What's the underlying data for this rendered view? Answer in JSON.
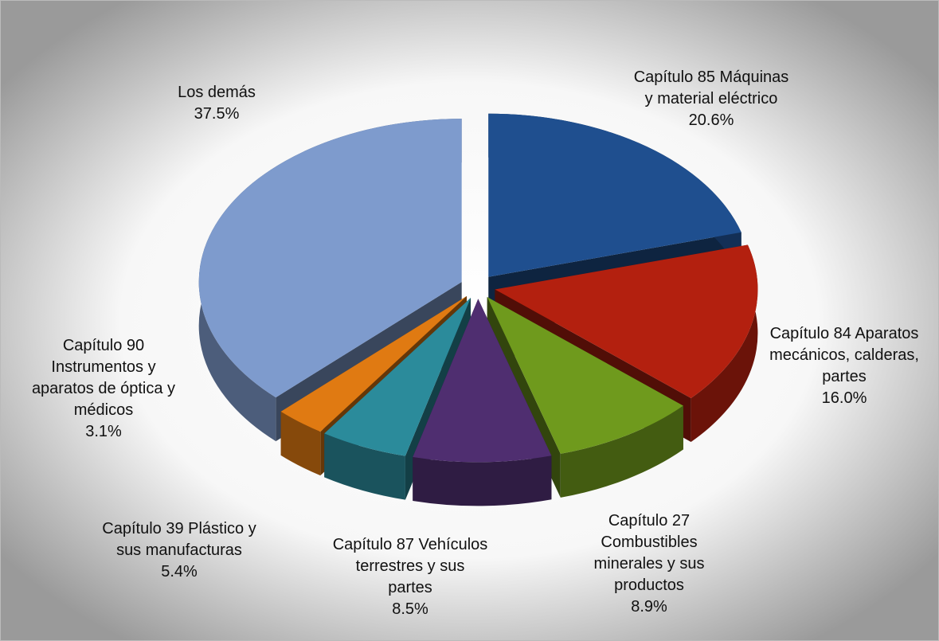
{
  "chart_data": {
    "type": "pie",
    "categories": [
      "Capítulo 85 Máquinas y material eléctrico",
      "Capítulo 84 Aparatos mecánicos, calderas, partes",
      "Capítulo 27 Combustibles minerales y sus productos",
      "Capítulo 87 Vehículos terrestres y sus partes",
      "Capítulo 39 Plástico y sus manufacturas",
      "Capítulo 90 Instrumentos y aparatos de óptica y médicos",
      "Los demás"
    ],
    "values": [
      20.6,
      16.0,
      8.9,
      8.5,
      5.4,
      3.1,
      37.5
    ],
    "value_labels": [
      "20.6%",
      "16.0%",
      "8.9%",
      "8.5%",
      "5.4%",
      "3.1%",
      "37.5%"
    ],
    "colors": [
      "#1f4f8f",
      "#b3200f",
      "#6f9a1d",
      "#4f2e70",
      "#2b8b9b",
      "#e07a12",
      "#7e9bcd"
    ]
  }
}
